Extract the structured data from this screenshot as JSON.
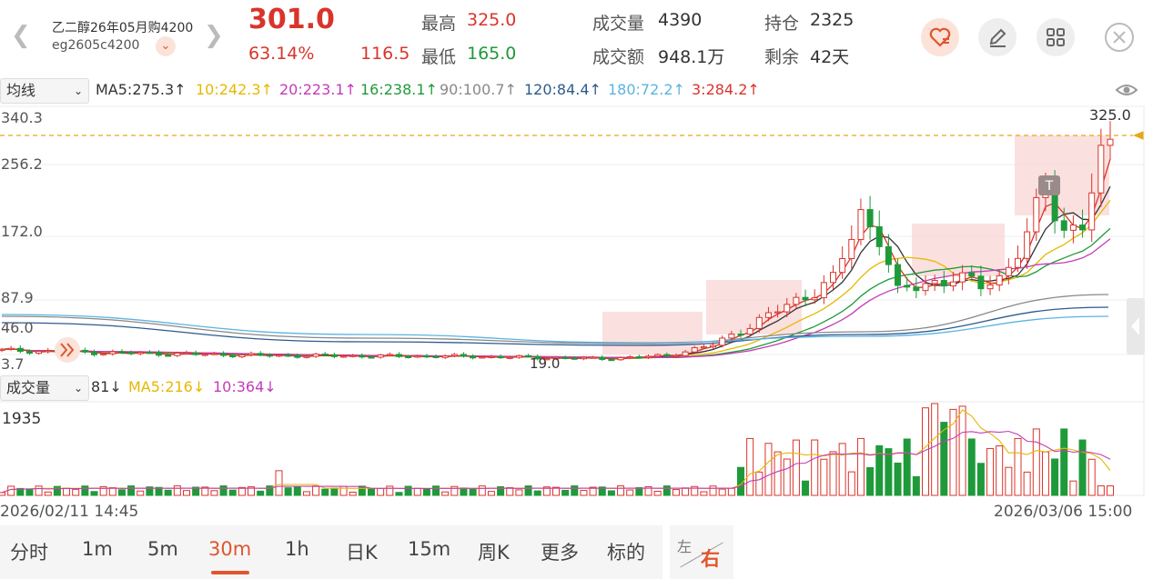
{
  "header": {
    "name": "乙二醇26年05月购4200",
    "code": "eg2605c4200",
    "price": "301.0",
    "change_pct": "63.14%",
    "change_abs": "116.5",
    "high_label": "最高",
    "high_value": "325.0",
    "low_label": "最低",
    "low_value": "165.0",
    "volume_label": "成交量",
    "volume_value": "4390",
    "turnover_label": "成交额",
    "turnover_value": "948.1万",
    "oi_label": "持仓",
    "oi_value": "2325",
    "remain_label": "剩余",
    "remain_value": "42天"
  },
  "ma_bar": {
    "selector": "均线",
    "items": [
      {
        "text": "MA5:275.3↑",
        "color": "#333333"
      },
      {
        "text": "10:242.3↑",
        "color": "#e6b800"
      },
      {
        "text": "20:223.1↑",
        "color": "#c43bb8"
      },
      {
        "text": "16:238.1↑",
        "color": "#1e9a3a"
      },
      {
        "text": "90:100.7↑",
        "color": "#888888"
      },
      {
        "text": "120:84.4↑",
        "color": "#2d5a8c"
      },
      {
        "text": "180:72.2↑",
        "color": "#5bb3e0"
      },
      {
        "text": "3:284.2↑",
        "color": "#d9342b"
      }
    ]
  },
  "price_axis": [
    "340.3",
    "256.2",
    "172.0",
    "87.9",
    "46.0",
    "3.7"
  ],
  "price_annotations": {
    "high": "325.0",
    "low": "19.0",
    "marker": "T"
  },
  "vol_bar": {
    "selector": "成交量",
    "items": [
      {
        "text": "81↓",
        "color": "#333333"
      },
      {
        "text": "MA5:216↓",
        "color": "#e6b800"
      },
      {
        "text": "10:364↓",
        "color": "#c43bb8"
      }
    ],
    "axis_max": "1935"
  },
  "dates": {
    "start": "2026/02/11 14:45",
    "end": "2026/03/06 15:00"
  },
  "tabs": [
    "分时",
    "1m",
    "5m",
    "30m",
    "1h",
    "日K",
    "15m",
    "周K",
    "更多",
    "标的"
  ],
  "active_tab": "30m",
  "lr_toggle": {
    "left": "左",
    "right": "右"
  },
  "colors": {
    "up": "#d9342b",
    "down": "#1e9a3a",
    "accent": "#e0552e"
  },
  "icons": [
    "prev-arrow-icon",
    "next-arrow-icon",
    "chevron-down-icon",
    "favorite-heart-icon",
    "edit-pencil-icon",
    "grid-icon",
    "close-icon",
    "eye-icon",
    "double-chevron-icon"
  ],
  "chart_data": {
    "type": "candlestick",
    "count": 121,
    "y_range": [
      3.7,
      340.3
    ],
    "last_close": 301.0,
    "recent_high": 325.0,
    "period_low": 19.0,
    "volume_max": 1935
  }
}
